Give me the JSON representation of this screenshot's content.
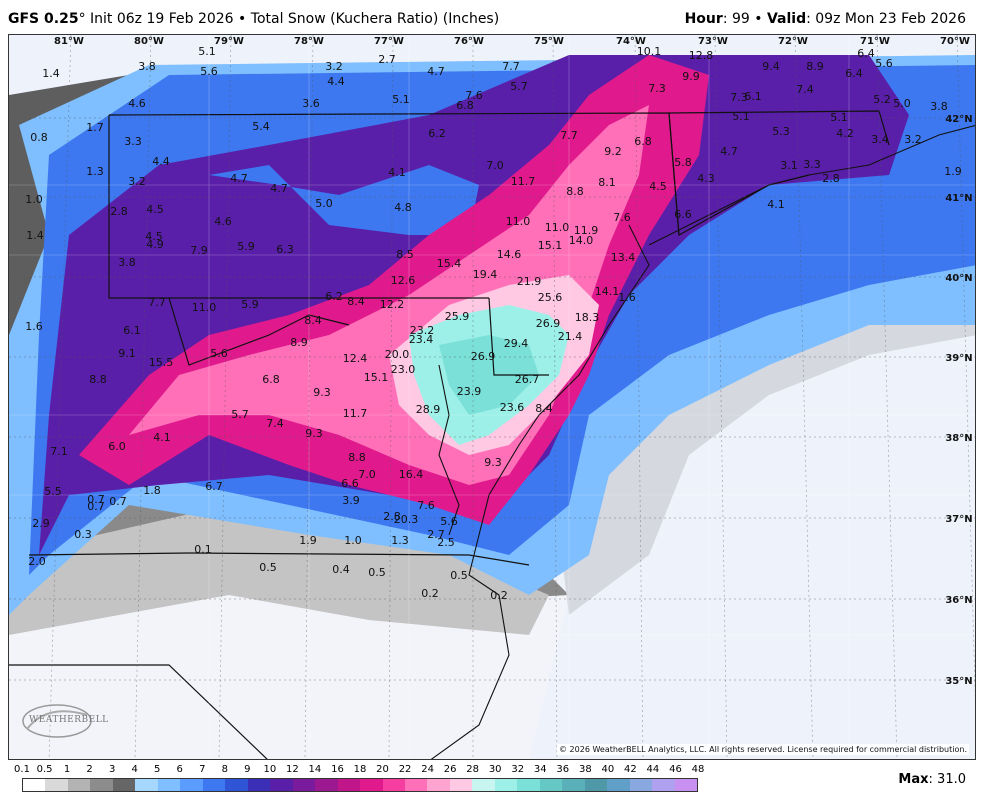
{
  "header": {
    "model": "GFS 0.25",
    "degree": "°",
    "init": " Init 06z 19 Feb 2026",
    "sep": " • ",
    "product": "Total Snow (Kuchera Ratio) (Inches)",
    "hour_label": "Hour",
    "hour_value": ": 99",
    "valid_label": "Valid",
    "valid_value": ": 09z Mon 23 Feb 2026"
  },
  "map": {
    "lon_labels": [
      "81°W",
      "80°W",
      "79°W",
      "78°W",
      "77°W",
      "76°W",
      "75°W",
      "74°W",
      "73°W",
      "72°W",
      "71°W",
      "70°W"
    ],
    "lat_labels": [
      "42°N",
      "41°N",
      "40°N",
      "39°N",
      "38°N",
      "37°N",
      "36°N",
      "35°N"
    ],
    "snow_values": [
      "1.4",
      "3.8",
      "5.1",
      "5.6",
      "3.2",
      "4.4",
      "2.7",
      "4.7",
      "7.7",
      "10.1",
      "12.8",
      "9.4",
      "8.9",
      "6.4",
      "5.6",
      "4.6",
      "3.6",
      "5.1",
      "6.8",
      "7.6",
      "5.7",
      "7.3",
      "9.9",
      "7.3",
      "6.1",
      "7.4",
      "6.4",
      "5.2",
      "5.0",
      "3.8",
      "0.8",
      "1.7",
      "3.3",
      "5.4",
      "6.2",
      "7.7",
      "9.2",
      "6.8",
      "5.1",
      "5.3",
      "5.1",
      "4.2",
      "3.4",
      "3.2",
      "1.3",
      "4.4",
      "4.7",
      "4.1",
      "7.0",
      "4.7",
      "5.8",
      "3.1",
      "3.3",
      "2.8",
      "1.9",
      "1.0",
      "3.2",
      "4.5",
      "4.7",
      "5.0",
      "4.8",
      "11.7",
      "8.8",
      "8.1",
      "4.5",
      "4.3",
      "4.1",
      "2.8",
      "4.5",
      "4.6",
      "11.0",
      "11.0",
      "11.9",
      "7.6",
      "6.6",
      "1.4",
      "4.9",
      "7.9",
      "5.9",
      "6.3",
      "8.5",
      "15.4",
      "14.6",
      "15.1",
      "14.0",
      "13.4",
      "3.8",
      "19.4",
      "12.6",
      "21.9",
      "25.6",
      "14.1",
      "1.6",
      "7.7",
      "11.0",
      "5.9",
      "6.2",
      "8.4",
      "12.2",
      "25.9",
      "18.3",
      "26.9",
      "1.6",
      "6.1",
      "8.4",
      "23.2",
      "23.4",
      "29.4",
      "21.4",
      "8.9",
      "9.1",
      "15.5",
      "5.6",
      "12.4",
      "20.0",
      "26.9",
      "23.0",
      "15.1",
      "8.8",
      "6.8",
      "26.7",
      "9.3",
      "23.9",
      "28.9",
      "23.6",
      "8.4",
      "5.7",
      "11.7",
      "7.4",
      "9.3",
      "7.1",
      "6.0",
      "4.1",
      "8.8",
      "9.3",
      "7.0",
      "16.4",
      "5.5",
      "0.7",
      "0.7",
      "1.8",
      "6.7",
      "6.6",
      "3.9",
      "2.9",
      "0.7",
      "2.8",
      "7.6",
      "5.6",
      "20.3",
      "0.3",
      "1.9",
      "1.0",
      "1.3",
      "2.7",
      "2.5",
      "0.1",
      "2.0",
      "0.5",
      "0.4",
      "0.5",
      "0.5",
      "0.2",
      "0.2"
    ],
    "copyright": "© 2026 WeatherBELL Analytics, LLC. All rights reserved. License required for commercial distribution.",
    "logo_text": "WEATHERBELL"
  },
  "legend": {
    "ticks": [
      "0.1",
      "0.5",
      "1",
      "2",
      "3",
      "4",
      "5",
      "6",
      "7",
      "8",
      "9",
      "10",
      "12",
      "14",
      "16",
      "18",
      "20",
      "22",
      "24",
      "26",
      "28",
      "30",
      "32",
      "34",
      "36",
      "38",
      "40",
      "42",
      "44",
      "46",
      "48"
    ],
    "colors": [
      "#ffffff",
      "#d9d9d9",
      "#b3b3b3",
      "#8c8c8c",
      "#666666",
      "#a6d8ff",
      "#7fbfff",
      "#5a9cff",
      "#3d78f0",
      "#2f55d6",
      "#3b2fb8",
      "#5a1fa8",
      "#7a1a9c",
      "#9b1890",
      "#c0168a",
      "#e01a8c",
      "#f53ea0",
      "#ff70b8",
      "#ffa3d0",
      "#ffc9e4",
      "#c8f5f0",
      "#9cf0e8",
      "#7ae0d8",
      "#66c8c4",
      "#5ab0b8",
      "#4f98a8",
      "#60a0c8",
      "#8aa8e0",
      "#b0a0f0",
      "#c890f0"
    ],
    "max_label": "Max",
    "max_value": ": 31.0"
  },
  "colors": {
    "deep_purple": "#5a1fa8",
    "magenta": "#e01a8c",
    "pink": "#ff70b8",
    "cyan": "#9cf0e8",
    "blue": "#3d78f0",
    "light_blue": "#7fbfff",
    "gray": "#777777",
    "ocean": "#eef3fb"
  }
}
